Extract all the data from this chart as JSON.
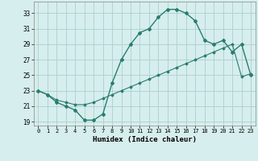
{
  "xlabel": "Humidex (Indice chaleur)",
  "x_data": [
    0,
    1,
    2,
    3,
    4,
    5,
    6,
    7,
    8,
    9,
    10,
    11,
    12,
    13,
    14,
    15,
    16,
    17,
    18,
    19,
    20,
    21,
    22,
    23
  ],
  "y_line1": [
    23,
    22.5,
    21.5,
    21,
    20.5,
    19.2,
    19.2,
    20,
    24,
    27,
    29,
    30.5,
    31,
    32.5,
    33.5,
    33.5,
    33,
    32,
    29.5,
    29,
    29.5,
    28,
    29,
    25
  ],
  "y_line2": [
    23,
    22.5,
    21.8,
    21.5,
    21.2,
    21.2,
    21.5,
    22,
    22.5,
    23,
    23.5,
    24,
    24.5,
    25,
    25.5,
    26,
    26.5,
    27,
    27.5,
    28,
    28.5,
    29,
    24.8,
    25.2
  ],
  "line_color": "#2a7d6e",
  "bg_color": "#d6eeed",
  "grid_color": "#aacfcf",
  "ylim": [
    18.5,
    34.5
  ],
  "xlim": [
    -0.5,
    23.5
  ],
  "yticks": [
    19,
    21,
    23,
    25,
    27,
    29,
    31,
    33
  ],
  "xticks": [
    0,
    1,
    2,
    3,
    4,
    5,
    6,
    7,
    8,
    9,
    10,
    11,
    12,
    13,
    14,
    15,
    16,
    17,
    18,
    19,
    20,
    21,
    22,
    23
  ]
}
